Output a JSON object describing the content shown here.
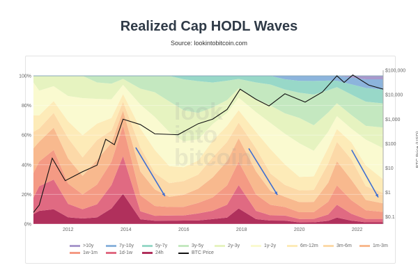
{
  "title": "Realized Cap HODL Waves",
  "subtitle": "Source: lookintobitcoin.com",
  "watermark": "look into bitcoin",
  "chart_data": {
    "type": "area",
    "stacked": true,
    "x": [
      2010.8,
      2011.0,
      2011.5,
      2012.0,
      2012.5,
      2013.0,
      2013.5,
      2013.9,
      2014.5,
      2015.0,
      2015.5,
      2016.0,
      2016.5,
      2017.0,
      2017.5,
      2017.9,
      2018.5,
      2019.0,
      2019.5,
      2020.0,
      2020.5,
      2021.0,
      2021.3,
      2021.8,
      2022.3,
      2022.9
    ],
    "xlim": [
      2010.8,
      2022.9
    ],
    "x_ticks": [
      "2012",
      "2014",
      "2016",
      "2018",
      "2020",
      "2022"
    ],
    "ylim": [
      0,
      100
    ],
    "y_ticks": [
      "0%",
      "20%",
      "40%",
      "60%",
      "80%",
      "100%"
    ],
    "y2_label": "BTC Price (USD)",
    "y2_ticks": [
      "$0.1",
      "$1",
      "$10",
      "$100",
      "$1,000",
      "$10,000",
      "$100,000"
    ],
    "y2_lim": [
      0.05,
      150000
    ],
    "series": [
      {
        "name": "24h",
        "color": "#b0305c",
        "values": [
          6,
          8,
          10,
          4,
          3,
          4,
          10,
          20,
          3,
          2,
          2,
          2,
          2,
          3,
          4,
          10,
          3,
          2,
          2,
          1,
          1,
          2,
          4,
          2,
          1,
          1
        ]
      },
      {
        "name": "1d-1w",
        "color": "#e06a82",
        "values": [
          10,
          15,
          20,
          8,
          5,
          8,
          15,
          25,
          5,
          3,
          3,
          3,
          4,
          5,
          8,
          15,
          5,
          3,
          3,
          2,
          2,
          4,
          8,
          4,
          2,
          2
        ]
      },
      {
        "name": "1w-1m",
        "color": "#f49a84",
        "values": [
          15,
          15,
          20,
          12,
          8,
          12,
          15,
          20,
          10,
          6,
          5,
          5,
          6,
          8,
          12,
          15,
          10,
          6,
          5,
          4,
          4,
          8,
          12,
          8,
          5,
          4
        ]
      },
      {
        "name": "1m-3m",
        "color": "#f8b98e",
        "values": [
          15,
          12,
          15,
          15,
          10,
          15,
          12,
          10,
          15,
          10,
          6,
          7,
          8,
          12,
          15,
          15,
          14,
          8,
          6,
          6,
          6,
          12,
          15,
          12,
          6,
          5
        ]
      },
      {
        "name": "3m-6m",
        "color": "#fcd9a8",
        "values": [
          10,
          8,
          10,
          12,
          10,
          12,
          8,
          6,
          15,
          10,
          8,
          8,
          8,
          12,
          12,
          10,
          14,
          10,
          7,
          7,
          7,
          12,
          12,
          12,
          8,
          6
        ]
      },
      {
        "name": "6m-12m",
        "color": "#fdebb8",
        "values": [
          10,
          8,
          8,
          10,
          12,
          10,
          8,
          5,
          12,
          14,
          10,
          8,
          8,
          10,
          10,
          8,
          10,
          14,
          12,
          8,
          8,
          10,
          8,
          10,
          12,
          8
        ]
      },
      {
        "name": "1y-2y",
        "color": "#fafad0",
        "values": [
          20,
          15,
          10,
          15,
          20,
          15,
          12,
          6,
          15,
          20,
          20,
          15,
          12,
          10,
          8,
          8,
          12,
          15,
          18,
          20,
          15,
          10,
          8,
          8,
          15,
          18
        ]
      },
      {
        "name": "2y-3y",
        "color": "#e6f3c0",
        "values": [
          4,
          9,
          7,
          12,
          12,
          10,
          10,
          4,
          10,
          15,
          18,
          18,
          15,
          10,
          8,
          6,
          8,
          10,
          12,
          15,
          15,
          12,
          8,
          8,
          8,
          12
        ]
      },
      {
        "name": "3y-5y",
        "color": "#c4e8c0",
        "values": [
          0,
          0,
          0,
          0,
          0,
          4,
          5,
          2,
          8,
          10,
          15,
          18,
          18,
          15,
          12,
          6,
          10,
          12,
          14,
          15,
          18,
          14,
          10,
          12,
          14,
          14
        ]
      },
      {
        "name": "5y-7y",
        "color": "#98d8c8",
        "values": [
          0,
          0,
          0,
          0,
          0,
          0,
          0,
          0,
          0,
          0,
          0,
          2,
          3,
          4,
          3,
          2,
          4,
          5,
          6,
          7,
          8,
          6,
          4,
          6,
          8,
          8
        ]
      },
      {
        "name": "7y-10y",
        "color": "#8cb4dc",
        "values": [
          0,
          0,
          0,
          0,
          0,
          0,
          0,
          0,
          0,
          0,
          0,
          0,
          0,
          0,
          0,
          0,
          0,
          0,
          2,
          3,
          3,
          3,
          3,
          4,
          5,
          6
        ]
      },
      {
        "name": ">10y",
        "color": "#a898cc",
        "values": [
          0,
          0,
          0,
          0,
          0,
          0,
          0,
          0,
          0,
          0,
          0,
          0,
          0,
          0,
          0,
          0,
          0,
          0,
          0,
          0,
          0,
          0,
          0,
          1,
          2,
          2
        ]
      }
    ],
    "price": {
      "name": "BTC Price",
      "color": "#111111",
      "x": [
        2010.8,
        2011.0,
        2011.45,
        2011.9,
        2012.5,
        2013.0,
        2013.3,
        2013.6,
        2013.9,
        2014.5,
        2015.0,
        2015.8,
        2016.5,
        2017.0,
        2017.5,
        2017.95,
        2018.5,
        2018.95,
        2019.5,
        2020.2,
        2020.8,
        2021.3,
        2021.55,
        2021.85,
        2022.4,
        2022.9
      ],
      "values": [
        0.15,
        0.3,
        25,
        3,
        7,
        13,
        150,
        90,
        1000,
        600,
        250,
        230,
        650,
        1000,
        2500,
        17000,
        6500,
        3500,
        11000,
        5000,
        13000,
        60000,
        32000,
        65000,
        25000,
        17000
      ]
    },
    "annotations": [
      {
        "type": "arrow",
        "color": "#3f6fd1",
        "from": [
          2014.34,
          51.6
        ],
        "to": [
          2015.35,
          18.8
        ]
      },
      {
        "type": "arrow",
        "color": "#3f6fd1",
        "from": [
          2018.25,
          51
        ],
        "to": [
          2019.24,
          19.7
        ]
      },
      {
        "type": "arrow",
        "color": "#3f6fd1",
        "from": [
          2021.81,
          50
        ],
        "to": [
          2022.73,
          18
        ]
      }
    ],
    "legend": [
      ">10y",
      "7y-10y",
      "5y-7y",
      "3y-5y",
      "2y-3y",
      "1y-2y",
      "6m-12m",
      "3m-6m",
      "1m-3m",
      "1w-1m",
      "1d-1w",
      "24h",
      "BTC Price"
    ],
    "legend_position": "bottom"
  }
}
